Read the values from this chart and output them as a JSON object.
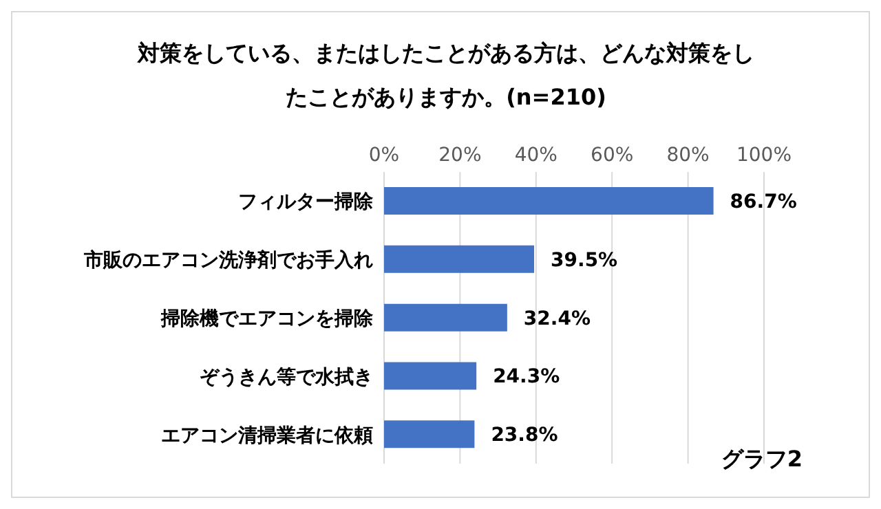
{
  "chart_data": {
    "type": "bar",
    "orientation": "horizontal",
    "title": "対策をしている、またはしたことがある方は、どんな対策をしたことがありますか。(n=210)",
    "categories": [
      "フィルター掃除",
      "市販のエアコン洗浄剤でお手入れ",
      "掃除機でエアコンを掃除",
      "ぞうきん等で水拭き",
      "エアコン清掃業者に依頼"
    ],
    "values": [
      86.7,
      39.5,
      32.4,
      24.3,
      23.8
    ],
    "value_labels": [
      "86.7%",
      "39.5%",
      "32.4%",
      "24.3%",
      "23.8%"
    ],
    "color": "#4472c4",
    "xlim": [
      0,
      100
    ],
    "xticks": [
      {
        "value": 0,
        "label": "0%"
      },
      {
        "value": 20,
        "label": "20%"
      },
      {
        "value": 40,
        "label": "40%"
      },
      {
        "value": 60,
        "label": "60%"
      },
      {
        "value": 80,
        "label": "80%"
      },
      {
        "value": 100,
        "label": "100%"
      }
    ],
    "grid": "x",
    "annotations": [
      "グラフ2"
    ]
  }
}
